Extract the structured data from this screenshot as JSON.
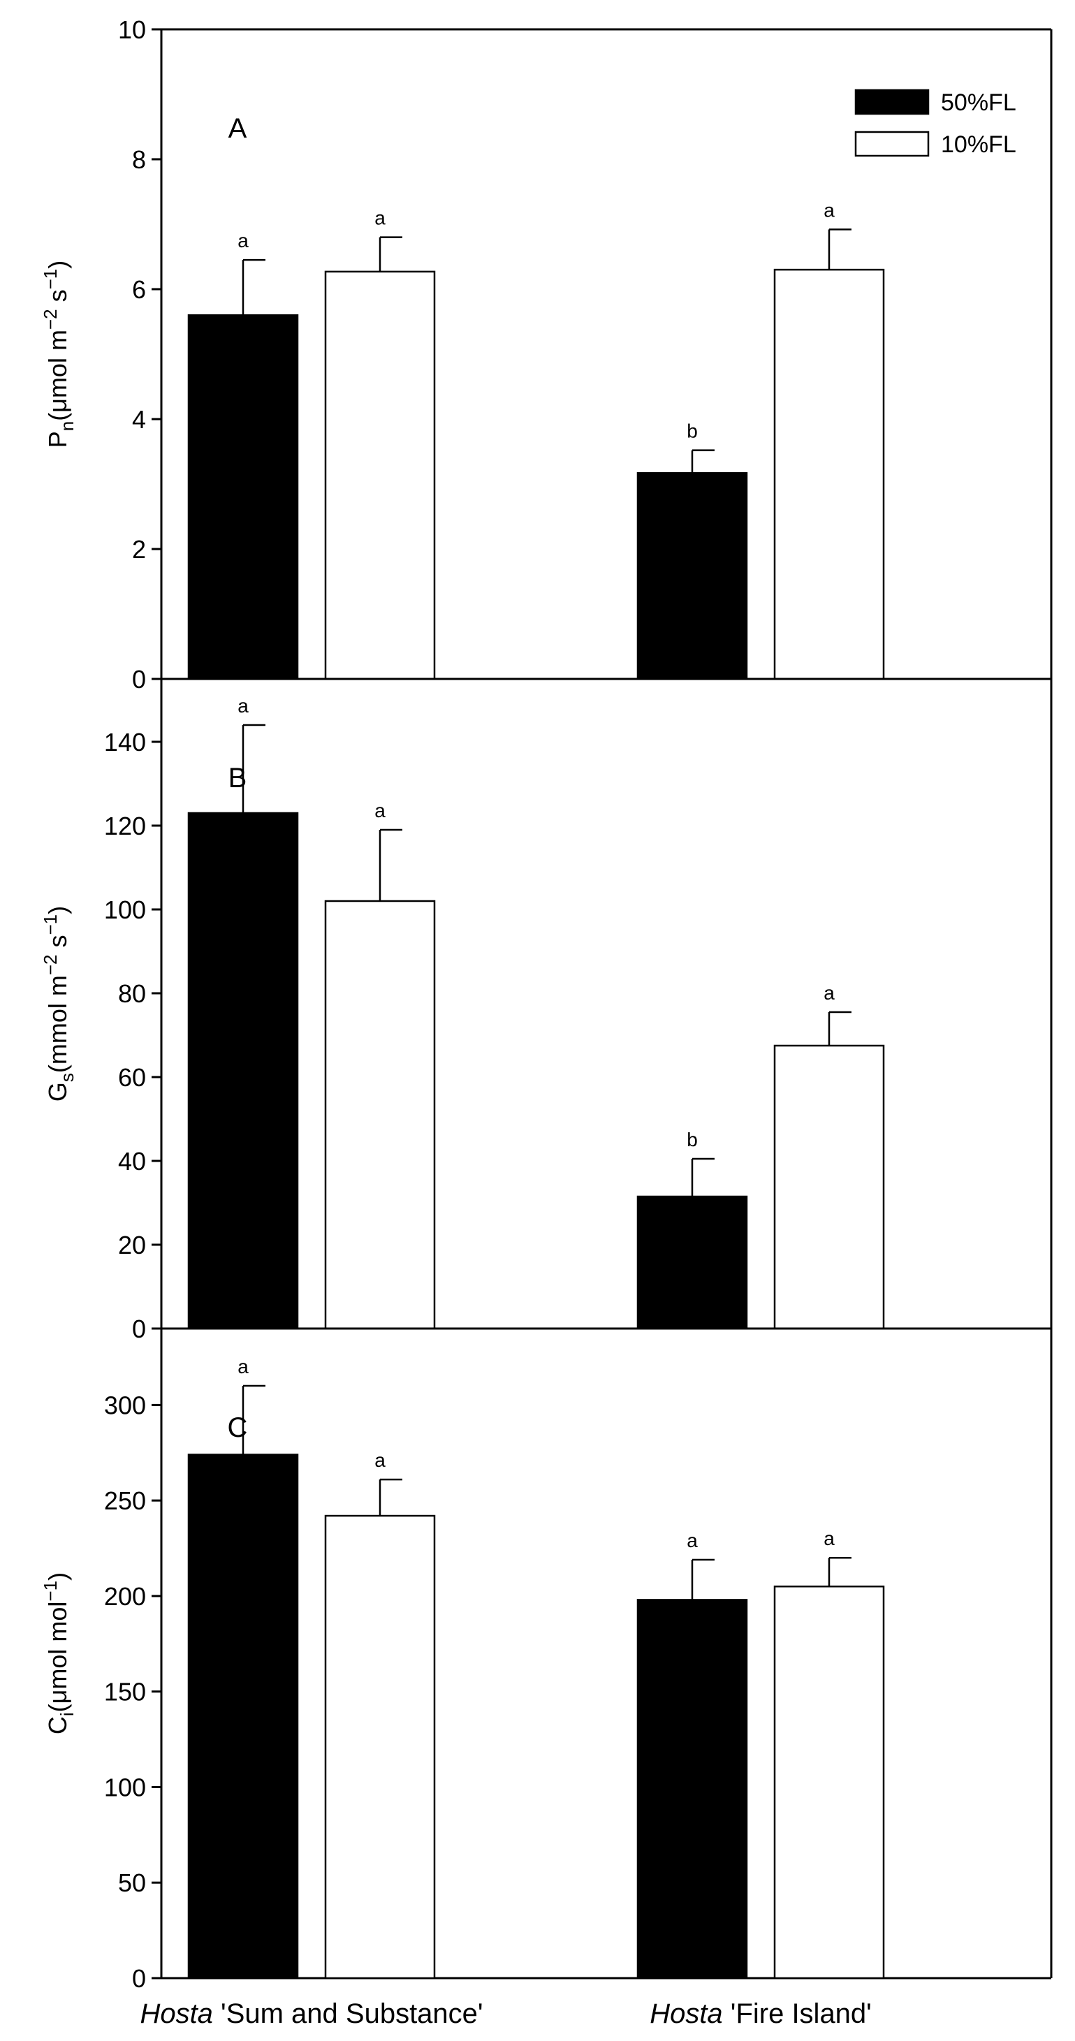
{
  "chart_data": [
    {
      "type": "bar",
      "panel": "A",
      "categories_label_prefix": "Hosta",
      "categories": [
        "'Sum and Substance'",
        "'Fire Island'"
      ],
      "series": [
        {
          "name": "50%FL",
          "color": "#000000",
          "values": [
            5.6,
            3.17
          ],
          "errors": [
            0.85,
            0.35
          ],
          "letters": [
            "a",
            "b"
          ]
        },
        {
          "name": "10%FL",
          "color": "#ffffff",
          "values": [
            6.27,
            6.3
          ],
          "errors": [
            0.53,
            0.62
          ],
          "letters": [
            "a",
            "a"
          ]
        }
      ],
      "ylabel": {
        "main": "P",
        "sub": "n",
        "unit_open": "(μmol m",
        "sup1": "−2",
        "mid": " s",
        "sup2": "−1",
        "close": ")"
      },
      "ylim": [
        0,
        10
      ],
      "yticks": [
        0,
        2,
        4,
        6,
        8,
        10
      ],
      "legend": {
        "position": "top-right",
        "entries": [
          "50%FL",
          "10%FL"
        ]
      }
    },
    {
      "type": "bar",
      "panel": "B",
      "categories": [
        "'Sum and Substance'",
        "'Fire Island'"
      ],
      "series": [
        {
          "name": "50%FL",
          "color": "#000000",
          "values": [
            123,
            31.5
          ],
          "errors": [
            21,
            9
          ],
          "letters": [
            "a",
            "b"
          ]
        },
        {
          "name": "10%FL",
          "color": "#ffffff",
          "values": [
            102,
            67.5
          ],
          "errors": [
            17,
            8
          ],
          "letters": [
            "a",
            "a"
          ]
        }
      ],
      "ylabel": {
        "main": "G",
        "sub": "s",
        "unit_open": "(mmol m",
        "sup1": "−2",
        "mid": " s",
        "sup2": "−1",
        "close": ")"
      },
      "ylim": [
        0,
        155
      ],
      "yticks": [
        0,
        20,
        40,
        60,
        80,
        100,
        120,
        140
      ]
    },
    {
      "type": "bar",
      "panel": "C",
      "categories": [
        "'Sum and Substance'",
        "'Fire Island'"
      ],
      "series": [
        {
          "name": "50%FL",
          "color": "#000000",
          "values": [
            274,
            198
          ],
          "errors": [
            36,
            21
          ],
          "letters": [
            "a",
            "a"
          ]
        },
        {
          "name": "10%FL",
          "color": "#ffffff",
          "values": [
            242,
            205
          ],
          "errors": [
            19,
            15
          ],
          "letters": [
            "a",
            "a"
          ]
        }
      ],
      "ylabel": {
        "main": "C",
        "sub": "i",
        "unit_open": "(μmol mol",
        "sup1": "−1",
        "mid": "",
        "sup2": "",
        "close": ")"
      },
      "ylim": [
        0,
        340
      ],
      "yticks": [
        0,
        50,
        100,
        150,
        200,
        250,
        300
      ]
    }
  ],
  "x_categories": [
    {
      "genus": "Hosta",
      "cultivar": " 'Sum and Substance'"
    },
    {
      "genus": "Hosta",
      "cultivar": " 'Fire Island'"
    }
  ],
  "colors": {
    "axis": "#000000",
    "bar_dark": "#000000",
    "bar_light": "#ffffff"
  }
}
